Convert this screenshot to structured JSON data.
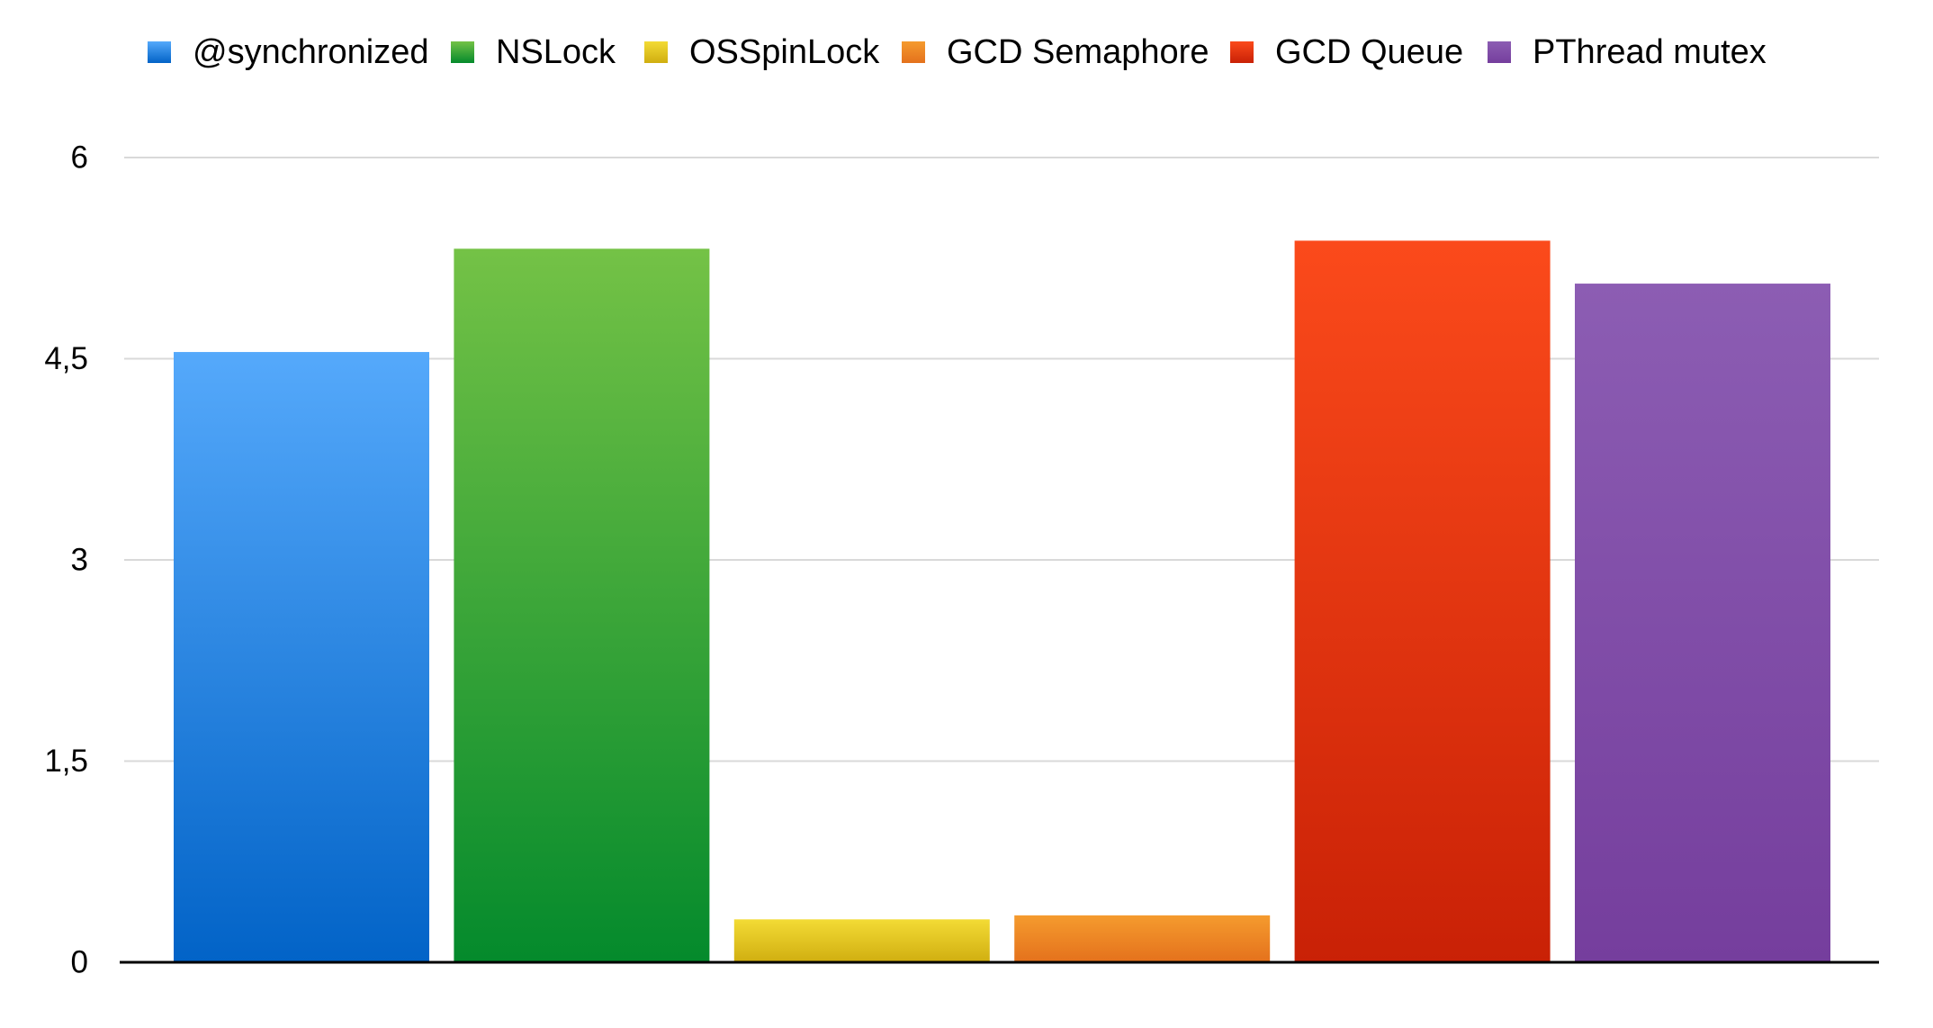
{
  "chart_data": {
    "type": "bar",
    "title": "",
    "xlabel": "",
    "ylabel": "",
    "ylim": [
      0,
      6
    ],
    "yticks": [
      {
        "value": 0,
        "label": "0"
      },
      {
        "value": 1.5,
        "label": "1,5"
      },
      {
        "value": 3,
        "label": "3"
      },
      {
        "value": 4.5,
        "label": "4,5"
      },
      {
        "value": 6,
        "label": "6"
      }
    ],
    "grid": true,
    "legend_position": "top",
    "series": [
      {
        "name": "@synchronized",
        "value": 4.55,
        "color_top": "#55a9fb",
        "color_bottom": "#0263c7"
      },
      {
        "name": "NSLock",
        "value": 5.32,
        "color_top": "#74c246",
        "color_bottom": "#048a2c"
      },
      {
        "name": "OSSpinLock",
        "value": 0.32,
        "color_top": "#f3db35",
        "color_bottom": "#d0ae10"
      },
      {
        "name": "GCD Semaphore",
        "value": 0.35,
        "color_top": "#f59b2e",
        "color_bottom": "#e4711c"
      },
      {
        "name": "GCD Queue",
        "value": 5.38,
        "color_top": "#fb4a1b",
        "color_bottom": "#c92106"
      },
      {
        "name": "PThread mutex",
        "value": 5.06,
        "color_top": "#8c5db3",
        "color_bottom": "#753e9d"
      }
    ]
  }
}
